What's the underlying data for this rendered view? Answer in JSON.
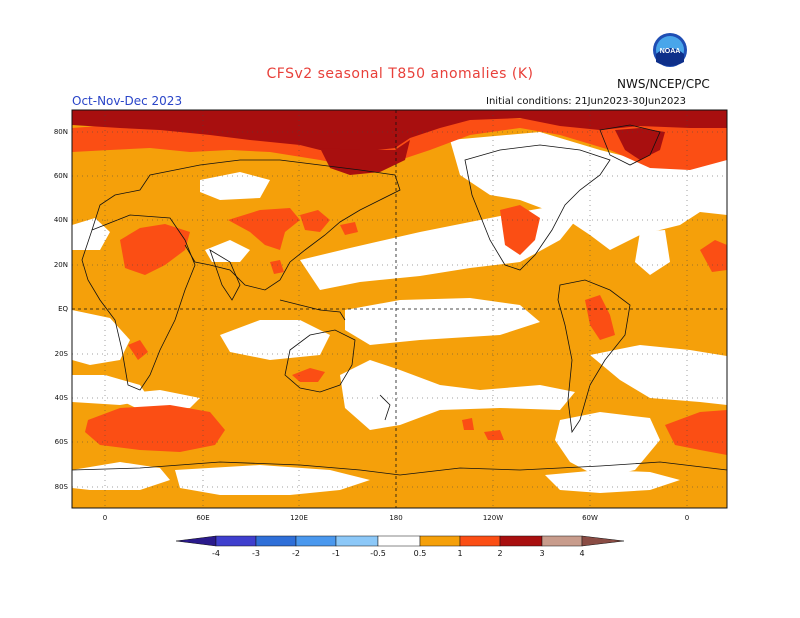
{
  "header": {
    "title": "CFSv2 seasonal T850 anomalies (K)",
    "org": "NWS/NCEP/CPC",
    "season": "Oct-Nov-Dec 2023",
    "initial_conditions": "Initial conditions: 21Jun2023-30Jun2023",
    "logo_text": "NOAA"
  },
  "axes": {
    "lat_labels": [
      "80N",
      "60N",
      "40N",
      "20N",
      "EQ",
      "20S",
      "40S",
      "60S",
      "80S"
    ],
    "lon_labels": [
      "0",
      "60E",
      "120E",
      "180",
      "120W",
      "60W",
      "0"
    ]
  },
  "colorbar": {
    "labels": [
      "-4",
      "-3",
      "-2",
      "-1",
      "-0.5",
      "0.5",
      "1",
      "2",
      "3",
      "4"
    ],
    "colors": [
      "#2a1a8c",
      "#3f3fce",
      "#2f6fd8",
      "#4a98ee",
      "#8cc8f8",
      "#ffffff",
      "#f5a00a",
      "#fb4e14",
      "#a80f0f",
      "#c89c8c",
      "#8a4c44"
    ]
  },
  "legend_map": {
    "white": "#ffffff",
    "c05": "#f5a00a",
    "c1": "#fb4e14",
    "c2": "#a80f0f",
    "c3": "#c89c8c"
  }
}
